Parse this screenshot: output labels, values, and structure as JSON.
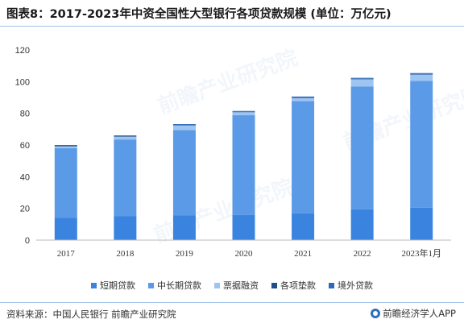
{
  "title": "图表8：2017-2023年中资全国性大型银行各项贷款规模 (单位：万亿元)",
  "source": "资料来源：中国人民银行 前瞻产业研究院",
  "brand": "前瞻经济学人APP",
  "colors": {
    "short_term": "#3a84e0",
    "medium_long_term": "#5b9ae6",
    "bill_financing": "#9ec4f2",
    "advances": "#1f4f8a",
    "overseas": "#2d6bb8"
  },
  "chart_data": {
    "type": "bar",
    "stacked": true,
    "categories": [
      "2017",
      "2018",
      "2019",
      "2020",
      "2021",
      "2022",
      "2023年1月"
    ],
    "series": [
      {
        "name": "短期贷款",
        "color_key": "short_term",
        "values": [
          14.0,
          15.0,
          15.5,
          15.8,
          16.8,
          19.5,
          20.5
        ]
      },
      {
        "name": "中长期贷款",
        "color_key": "medium_long_term",
        "values": [
          44.0,
          48.5,
          54.0,
          63.0,
          71.0,
          77.5,
          80.0
        ]
      },
      {
        "name": "票据融资",
        "color_key": "bill_financing",
        "values": [
          1.2,
          1.8,
          3.0,
          2.0,
          2.0,
          4.5,
          4.0
        ]
      },
      {
        "name": "各项垫款",
        "color_key": "advances",
        "values": [
          0.3,
          0.3,
          0.2,
          0.2,
          0.2,
          0.3,
          0.3
        ]
      },
      {
        "name": "境外贷款",
        "color_key": "overseas",
        "values": [
          0.5,
          0.5,
          0.5,
          0.5,
          0.6,
          0.6,
          0.6
        ]
      }
    ],
    "y_ticks": [
      0,
      20,
      40,
      60,
      80,
      100,
      120
    ],
    "ylim": [
      0,
      120
    ],
    "grid": false,
    "legend_position": "bottom"
  }
}
